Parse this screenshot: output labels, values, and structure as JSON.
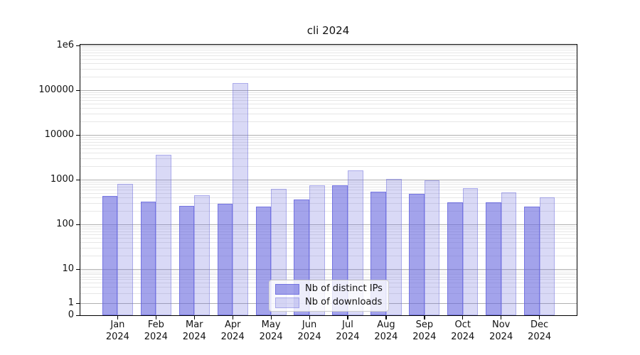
{
  "title": "cli 2024",
  "chart_data": {
    "type": "bar",
    "title": "cli 2024",
    "yscale": "symlog",
    "grid": true,
    "categories": [
      "Jan 2024",
      "Feb 2024",
      "Mar 2024",
      "Apr 2024",
      "May 2024",
      "Jun 2024",
      "Jul 2024",
      "Aug 2024",
      "Sep 2024",
      "Oct 2024",
      "Nov 2024",
      "Dec 2024"
    ],
    "series": [
      {
        "name": "Nb of distinct IPs",
        "color": "#6666dd",
        "alpha": 0.6,
        "values": [
          430,
          325,
          255,
          285,
          245,
          355,
          740,
          530,
          480,
          305,
          305,
          245
        ]
      },
      {
        "name": "Nb of downloads",
        "color": "#6666dd",
        "alpha": 0.25,
        "values": [
          800,
          3600,
          440,
          145000,
          615,
          740,
          1600,
          1050,
          980,
          640,
          510,
          400
        ]
      }
    ],
    "y_ticks": [
      0,
      1,
      10,
      100,
      1000,
      10000,
      100000,
      1000000
    ],
    "y_tick_labels": [
      "0",
      "1",
      "10",
      "100",
      "1000",
      "10000",
      "100000",
      "1e6"
    ],
    "ylim": [
      0,
      1100000
    ],
    "legend_position": "lower center"
  },
  "colors": {
    "grid_major": "#b0b0b0",
    "grid_minor": "#e7e7e7",
    "axis": "#000000"
  }
}
